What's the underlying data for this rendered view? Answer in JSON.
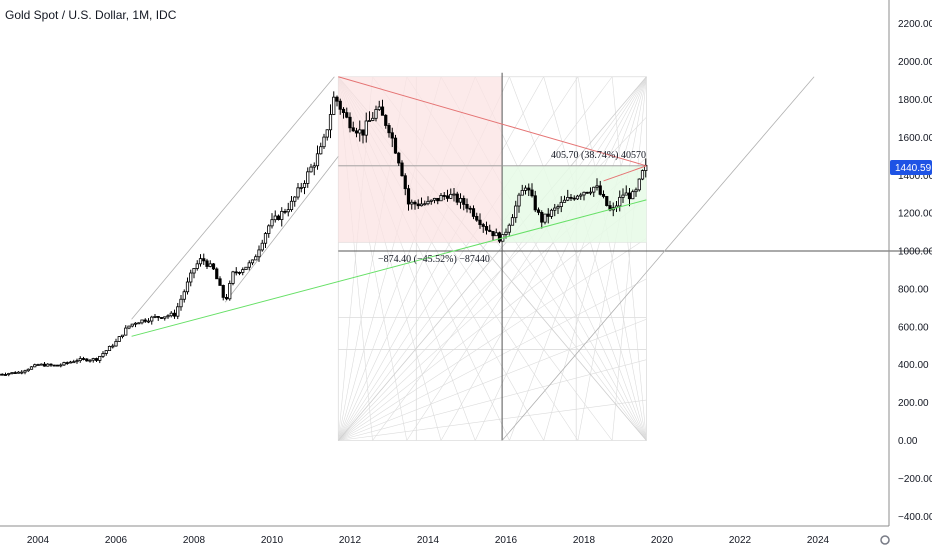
{
  "title": "Gold Spot / U.S. Dollar, 1M, IDC",
  "colors": {
    "candle": "#000000",
    "price_tag": "#1e53e5",
    "red_line": "#e57373",
    "green_line": "#66e066",
    "red_zone": "#fbe3e3",
    "green_zone": "#e6fae6",
    "guide": "#b0b0b0",
    "fan": "#dcdcdc",
    "axis_text": "#131722"
  },
  "price_tag": "1440.59",
  "annotations": {
    "gain_label": "405.70 (38.74%) 40570",
    "loss_label": "−874.40 (−45.52%) −87440"
  },
  "chart_data": {
    "type": "candlestick",
    "title": "Gold Spot / U.S. Dollar, 1M, IDC",
    "xlabel": "",
    "ylabel": "",
    "x_ticks": [
      "2004",
      "2006",
      "2008",
      "2010",
      "2012",
      "2014",
      "2016",
      "2018",
      "2020",
      "2022",
      "2024"
    ],
    "y_ticks": [
      "2200.00",
      "2000.00",
      "1800.00",
      "1600.00",
      "1400.00",
      "1200.00",
      "1000.00",
      "800.00",
      "600.00",
      "400.00",
      "200.00",
      "0.00",
      "−200.00",
      "−400.00"
    ],
    "ylim": [
      -450,
      2300
    ],
    "xlim": [
      2003.0,
      2026.8
    ],
    "last_price": 1440.59,
    "grid": false,
    "close_series": [
      [
        2003.0,
        350
      ],
      [
        2003.5,
        360
      ],
      [
        2004.0,
        400
      ],
      [
        2004.5,
        395
      ],
      [
        2005.0,
        425
      ],
      [
        2005.5,
        430
      ],
      [
        2006.0,
        520
      ],
      [
        2006.3,
        600
      ],
      [
        2006.5,
        625
      ],
      [
        2007.0,
        650
      ],
      [
        2007.5,
        665
      ],
      [
        2008.0,
        910
      ],
      [
        2008.2,
        960
      ],
      [
        2008.5,
        900
      ],
      [
        2008.8,
        730
      ],
      [
        2009.0,
        880
      ],
      [
        2009.5,
        940
      ],
      [
        2009.9,
        1130
      ],
      [
        2010.5,
        1250
      ],
      [
        2010.9,
        1400
      ],
      [
        2011.3,
        1550
      ],
      [
        2011.6,
        1820
      ],
      [
        2011.9,
        1700
      ],
      [
        2012.3,
        1620
      ],
      [
        2012.7,
        1750
      ],
      [
        2013.0,
        1650
      ],
      [
        2013.3,
        1450
      ],
      [
        2013.5,
        1250
      ],
      [
        2014.0,
        1250
      ],
      [
        2014.5,
        1300
      ],
      [
        2015.0,
        1240
      ],
      [
        2015.5,
        1120
      ],
      [
        2015.9,
        1060
      ],
      [
        2016.3,
        1260
      ],
      [
        2016.5,
        1350
      ],
      [
        2016.9,
        1160
      ],
      [
        2017.5,
        1260
      ],
      [
        2017.9,
        1310
      ],
      [
        2018.3,
        1340
      ],
      [
        2018.7,
        1200
      ],
      [
        2019.0,
        1300
      ],
      [
        2019.3,
        1290
      ],
      [
        2019.5,
        1410
      ],
      [
        2019.6,
        1440
      ]
    ],
    "series": [
      {
        "kind": "resistance",
        "from": [
          2011.7,
          1920
        ],
        "to": [
          2019.6,
          1450
        ]
      },
      {
        "kind": "support",
        "from": [
          2006.4,
          550
        ],
        "to": [
          2019.6,
          1270
        ]
      },
      {
        "kind": "measure_down",
        "from": [
          2011.7,
          1920
        ],
        "to": [
          2015.9,
          1046
        ],
        "value": -874.4,
        "percent": -45.52
      },
      {
        "kind": "measure_up",
        "from": [
          2015.9,
          1046
        ],
        "to": [
          2019.6,
          1450
        ],
        "value": 405.7,
        "percent": 38.74
      }
    ]
  }
}
